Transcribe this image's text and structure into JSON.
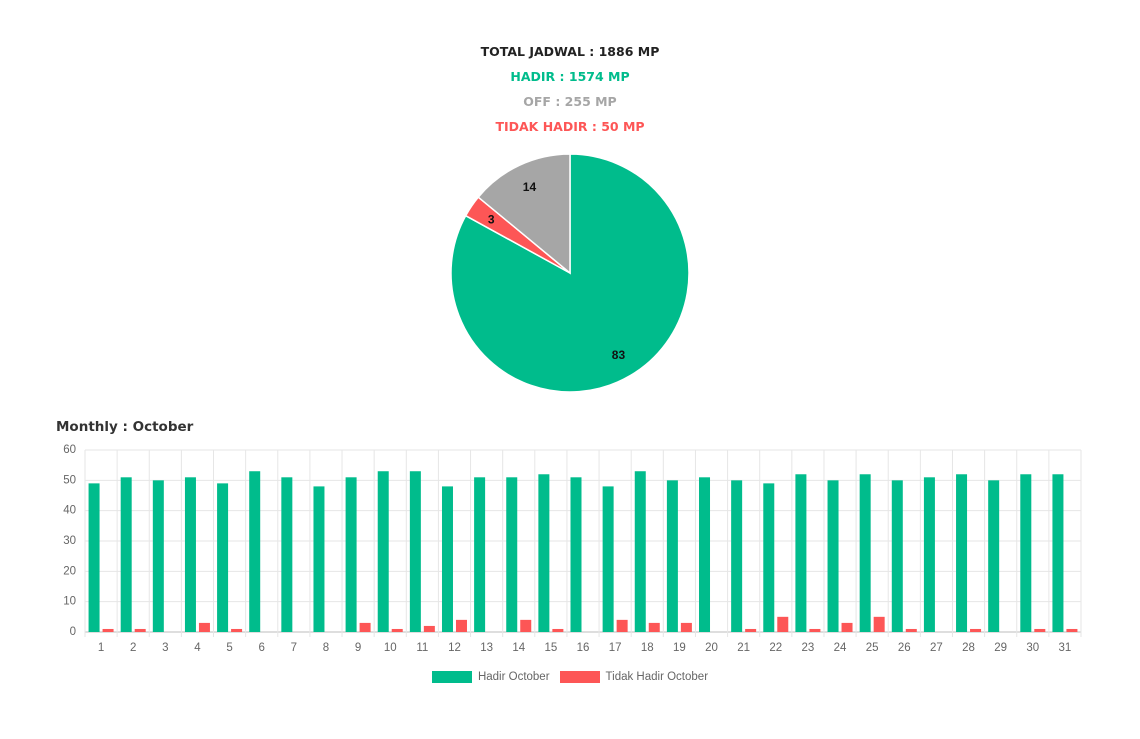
{
  "summary": {
    "total": "TOTAL JADWAL : 1886 MP",
    "hadir": "HADIR : 1574 MP",
    "off": "OFF : 255 MP",
    "tidak_hadir": "TIDAK HADIR : 50 MP"
  },
  "colors": {
    "total": "#222222",
    "hadir": "#00bc8c",
    "off": "#a6a6a6",
    "tidak_hadir": "#fd5656"
  },
  "monthly_title": "Monthly : October",
  "chart_data": [
    {
      "type": "pie",
      "labels": [
        "",
        "",
        ""
      ],
      "values": [
        83,
        3,
        14
      ],
      "colors": [
        "#00bc8c",
        "#fd5656",
        "#a6a6a6"
      ],
      "data_labels": [
        "83",
        "3",
        "14"
      ],
      "start_angle_deg": 0
    },
    {
      "type": "bar",
      "title": "Monthly : October",
      "categories": [
        "1",
        "2",
        "3",
        "4",
        "5",
        "6",
        "7",
        "8",
        "9",
        "10",
        "11",
        "12",
        "13",
        "14",
        "15",
        "16",
        "17",
        "18",
        "19",
        "20",
        "21",
        "22",
        "23",
        "24",
        "25",
        "26",
        "27",
        "28",
        "29",
        "30",
        "31"
      ],
      "series": [
        {
          "name": "Hadir October",
          "color": "#00bc8c",
          "values": [
            49,
            51,
            50,
            51,
            49,
            53,
            51,
            48,
            51,
            53,
            53,
            48,
            51,
            51,
            52,
            51,
            48,
            53,
            50,
            51,
            50,
            49,
            52,
            50,
            52,
            50,
            51,
            52,
            50,
            52,
            52
          ]
        },
        {
          "name": "Tidak Hadir October",
          "color": "#fd5656",
          "values": [
            1,
            1,
            0,
            3,
            1,
            0,
            0,
            0,
            3,
            1,
            2,
            4,
            0,
            4,
            1,
            0,
            4,
            3,
            3,
            0,
            1,
            5,
            1,
            3,
            5,
            1,
            0,
            1,
            0,
            1,
            1
          ]
        }
      ],
      "ylim": [
        0,
        60
      ],
      "yticks": [
        "0",
        "10",
        "20",
        "30",
        "40",
        "50",
        "60"
      ],
      "grid": true,
      "legend": "bottom"
    }
  ]
}
